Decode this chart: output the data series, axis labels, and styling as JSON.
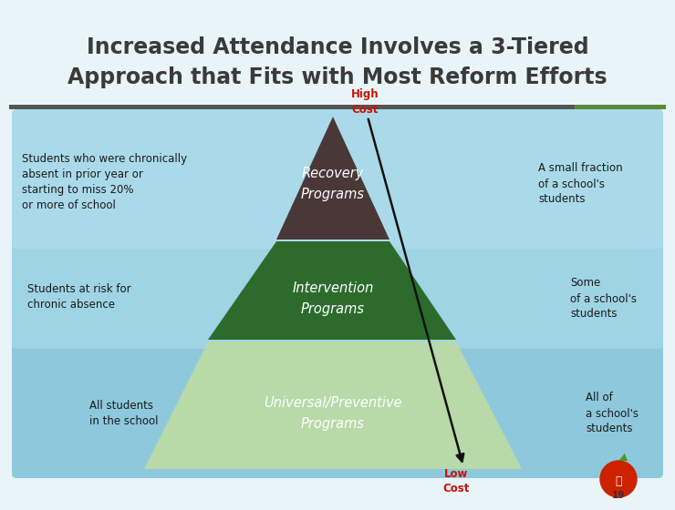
{
  "title_line1": "Increased Attendance Involves a 3-Tiered",
  "title_line2": "Approach that Fits with Most Reform Efforts",
  "bg_color": "#e8f4f8",
  "separator_color1": "#555555",
  "separator_color2": "#5a8a3c",
  "tier_colors": [
    "#b8d9a8",
    "#2d6b2d",
    "#4a3838"
  ],
  "tier_labels": [
    "Universal/Preventive\nPrograms",
    "Intervention\nPrograms",
    "Recovery\nPrograms"
  ],
  "tier_bg_colors": [
    "#8ec8dc",
    "#9fd4e4",
    "#aadaea"
  ],
  "left_labels": [
    "All students\nin the school",
    "Students at risk for\nchronic absence",
    "Students who were chronically\nabsent in prior year or\nstarting to miss 20%\nor more of school"
  ],
  "right_labels": [
    "All of\na school's\nstudents",
    "Some\nof a school's\nstudents",
    "A small fraction\nof a school's\nstudents"
  ],
  "high_cost_color": "#cc1100",
  "low_cost_color": "#cc1100",
  "arrow_color": "#111111",
  "page_num": "19",
  "title_color": "#3a3a3a"
}
